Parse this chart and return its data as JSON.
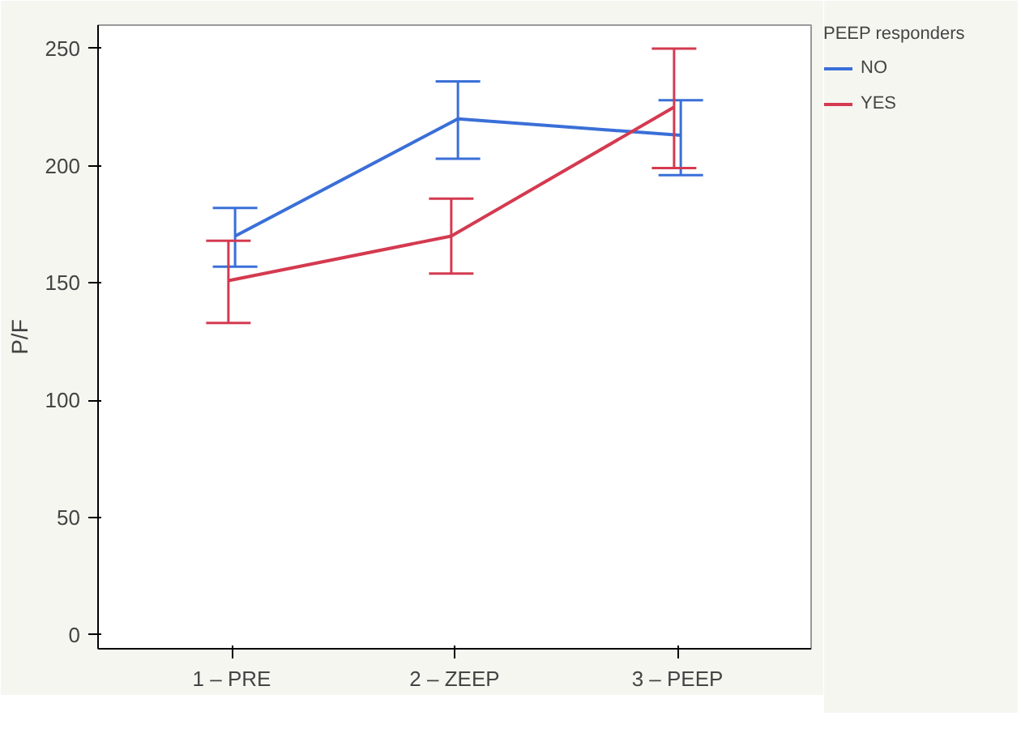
{
  "chart_data": {
    "type": "line",
    "ylabel": "P/F",
    "legend_title": "PEEP responders",
    "categories": [
      "1 – PRE",
      "2 – ZEEP",
      "3 – PEEP"
    ],
    "series": [
      {
        "name": "NO",
        "color": "#3a6fd8",
        "values": [
          170,
          220,
          213
        ],
        "errors": [
          [
            157,
            182
          ],
          [
            203,
            236
          ],
          [
            196,
            228
          ]
        ]
      },
      {
        "name": "YES",
        "color": "#d43a50",
        "values": [
          151,
          170,
          225
        ],
        "errors": [
          [
            133,
            168
          ],
          [
            154,
            186
          ],
          [
            199,
            250
          ]
        ]
      }
    ],
    "ylim": [
      -6,
      260
    ],
    "yticks": [
      0,
      50,
      100,
      150,
      200,
      250
    ],
    "grid": false,
    "legend": "right",
    "marker": "none",
    "line_style": "solid"
  }
}
